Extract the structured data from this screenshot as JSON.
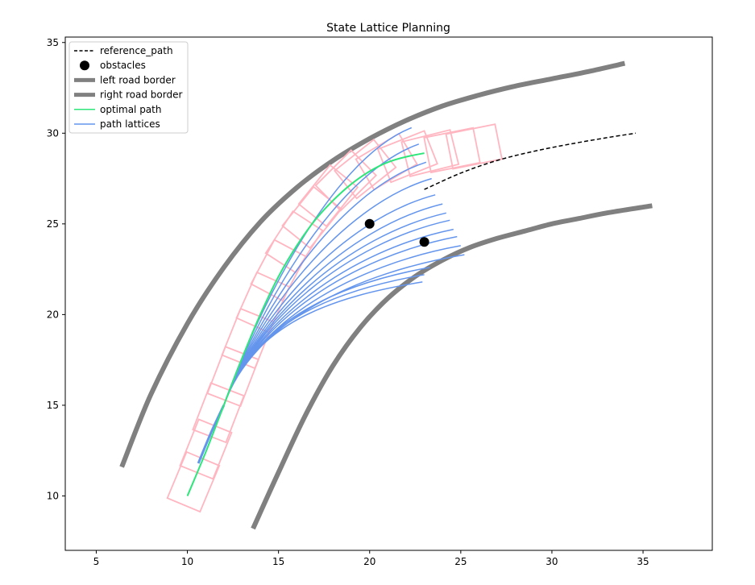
{
  "chart_data": {
    "type": "line",
    "title": "State Lattice Planning",
    "xlabel": "",
    "ylabel": "",
    "xlim": [
      3.3,
      38.8
    ],
    "ylim": [
      7.0,
      35.3
    ],
    "x_ticks": [
      5,
      10,
      15,
      20,
      25,
      30,
      35
    ],
    "y_ticks": [
      10,
      15,
      20,
      25,
      30,
      35
    ],
    "legend_position": "top-left",
    "legend": [
      {
        "label": "reference_path",
        "style": "dashed",
        "color": "#000000"
      },
      {
        "label": "obstacles",
        "style": "marker",
        "color": "#000000"
      },
      {
        "label": "left road border",
        "style": "thick",
        "color": "#808080"
      },
      {
        "label": "right road border",
        "style": "thick",
        "color": "#808080"
      },
      {
        "label": "optimal path",
        "style": "line",
        "color": "#2ee67a"
      },
      {
        "label": "path lattices",
        "style": "line",
        "color": "#6495ed"
      }
    ],
    "colors": {
      "reference_path": "#000000",
      "obstacles": "#000000",
      "road_border": "#808080",
      "optimal_path": "#2ee67a",
      "path_lattices": "#6495ed",
      "vehicle_boxes": "#ffb6c1"
    },
    "reference_path": {
      "x": [
        23.0,
        25.0,
        27.0,
        29.0,
        31.0,
        33.0,
        34.6
      ],
      "y": [
        26.9,
        27.8,
        28.5,
        29.0,
        29.4,
        29.75,
        30.0
      ]
    },
    "obstacles": {
      "x": [
        20.0,
        23.0
      ],
      "y": [
        25.0,
        24.0
      ]
    },
    "left_road_border": {
      "x": [
        6.4,
        8.0,
        10.0,
        12.0,
        14.0,
        16.0,
        18.0,
        20.0,
        22.0,
        24.0,
        26.0,
        28.0,
        30.0,
        32.0,
        34.0
      ],
      "y": [
        11.6,
        15.6,
        19.5,
        22.6,
        25.1,
        27.0,
        28.5,
        29.7,
        30.7,
        31.5,
        32.1,
        32.6,
        33.0,
        33.4,
        33.85
      ]
    },
    "right_road_border": {
      "x": [
        13.6,
        15.0,
        16.5,
        18.0,
        19.5,
        21.0,
        22.5,
        24.0,
        25.5,
        27.0,
        28.5,
        30.0,
        31.5,
        33.0,
        35.5
      ],
      "y": [
        8.2,
        11.3,
        14.5,
        17.2,
        19.3,
        20.9,
        22.1,
        23.0,
        23.7,
        24.2,
        24.6,
        25.0,
        25.3,
        25.6,
        26.0
      ]
    },
    "optimal_path": {
      "x": [
        10.0,
        11.0,
        12.0,
        13.0,
        14.0,
        15.0,
        16.0,
        17.0,
        18.0,
        19.0,
        20.0,
        21.0,
        22.0,
        23.0
      ],
      "y": [
        10.0,
        12.4,
        15.0,
        17.6,
        20.0,
        22.1,
        23.8,
        25.2,
        26.3,
        27.2,
        27.9,
        28.4,
        28.7,
        28.9
      ]
    },
    "lattice_start": [
      12.0,
      15.0
    ],
    "lattice_endpoints": {
      "x": [
        22.3,
        22.7,
        23.1,
        23.4,
        23.6,
        24.0,
        24.2,
        24.4,
        24.6,
        24.8,
        25.0,
        25.2,
        23.3,
        23.0,
        22.9
      ],
      "y": [
        30.3,
        29.4,
        28.4,
        27.5,
        26.6,
        26.1,
        25.6,
        25.2,
        24.7,
        24.3,
        23.8,
        23.3,
        22.6,
        22.2,
        21.8
      ]
    },
    "vehicle_boxes": {
      "x": [
        10.0,
        10.7,
        11.4,
        12.2,
        13.0,
        13.8,
        14.6,
        15.4,
        16.3,
        17.2,
        18.1,
        19.1,
        20.2,
        21.3,
        22.5,
        23.7,
        24.9
      ],
      "y": [
        10.0,
        11.8,
        13.8,
        15.8,
        17.9,
        19.9,
        21.7,
        23.3,
        24.7,
        25.9,
        26.8,
        27.5,
        28.0,
        28.4,
        28.7,
        28.9,
        29.1
      ]
    }
  }
}
